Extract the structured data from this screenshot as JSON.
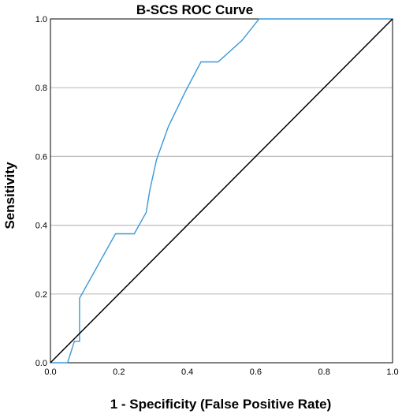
{
  "chart_data": {
    "type": "line",
    "title": "B-SCS ROC Curve",
    "xlabel": "1 - Specificity (False Positive Rate)",
    "ylabel": "Sensitivity",
    "xlim": [
      0,
      1
    ],
    "ylim": [
      0,
      1
    ],
    "x_ticks": [
      "0.0",
      "0.2",
      "0.4",
      "0.6",
      "0.8",
      "1.0"
    ],
    "y_ticks": [
      "0.0",
      "0.2",
      "0.4",
      "0.6",
      "0.8",
      "1.0"
    ],
    "grid": "horizontal",
    "series": [
      {
        "color": "#3a98d8",
        "x": [
          0.0,
          0.05,
          0.07,
          0.085,
          0.085,
          0.19,
          0.245,
          0.28,
          0.29,
          0.31,
          0.345,
          0.395,
          0.44,
          0.49,
          0.56,
          0.61,
          1.0
        ],
        "y": [
          0.0,
          0.0,
          0.0625,
          0.0625,
          0.1875,
          0.375,
          0.375,
          0.4375,
          0.5,
          0.59,
          0.6875,
          0.79,
          0.875,
          0.875,
          0.9375,
          1.0,
          1.0
        ]
      },
      {
        "color": "#000000",
        "x": [
          0,
          1
        ],
        "y": [
          0,
          1
        ]
      }
    ]
  }
}
